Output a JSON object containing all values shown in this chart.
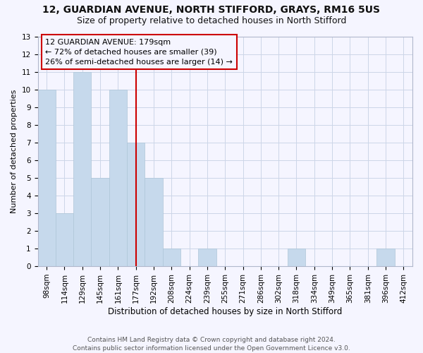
{
  "title1": "12, GUARDIAN AVENUE, NORTH STIFFORD, GRAYS, RM16 5US",
  "title2": "Size of property relative to detached houses in North Stifford",
  "xlabel": "Distribution of detached houses by size in North Stifford",
  "ylabel": "Number of detached properties",
  "footer1": "Contains HM Land Registry data © Crown copyright and database right 2024.",
  "footer2": "Contains public sector information licensed under the Open Government Licence v3.0.",
  "annotation_line1": "12 GUARDIAN AVENUE: 179sqm",
  "annotation_line2": "← 72% of detached houses are smaller (39)",
  "annotation_line3": "26% of semi-detached houses are larger (14) →",
  "categories": [
    "98sqm",
    "114sqm",
    "129sqm",
    "145sqm",
    "161sqm",
    "177sqm",
    "192sqm",
    "208sqm",
    "224sqm",
    "239sqm",
    "255sqm",
    "271sqm",
    "286sqm",
    "302sqm",
    "318sqm",
    "334sqm",
    "349sqm",
    "365sqm",
    "381sqm",
    "396sqm",
    "412sqm"
  ],
  "values": [
    10,
    3,
    11,
    5,
    10,
    7,
    5,
    1,
    0,
    1,
    0,
    0,
    0,
    0,
    1,
    0,
    0,
    0,
    0,
    1,
    0
  ],
  "bar_color": "#c6d9ec",
  "bar_edge_color": "#aec6d8",
  "ref_line_index": 5,
  "ref_line_color": "#cc0000",
  "annotation_box_color": "#cc0000",
  "grid_color": "#ccd6e8",
  "ylim": [
    0,
    13
  ],
  "yticks": [
    0,
    1,
    2,
    3,
    4,
    5,
    6,
    7,
    8,
    9,
    10,
    11,
    12,
    13
  ],
  "background_color": "#f5f5ff",
  "title1_fontsize": 10,
  "title2_fontsize": 9,
  "xlabel_fontsize": 8.5,
  "ylabel_fontsize": 8,
  "tick_fontsize": 7.5,
  "annotation_fontsize": 8,
  "footer_fontsize": 6.5
}
